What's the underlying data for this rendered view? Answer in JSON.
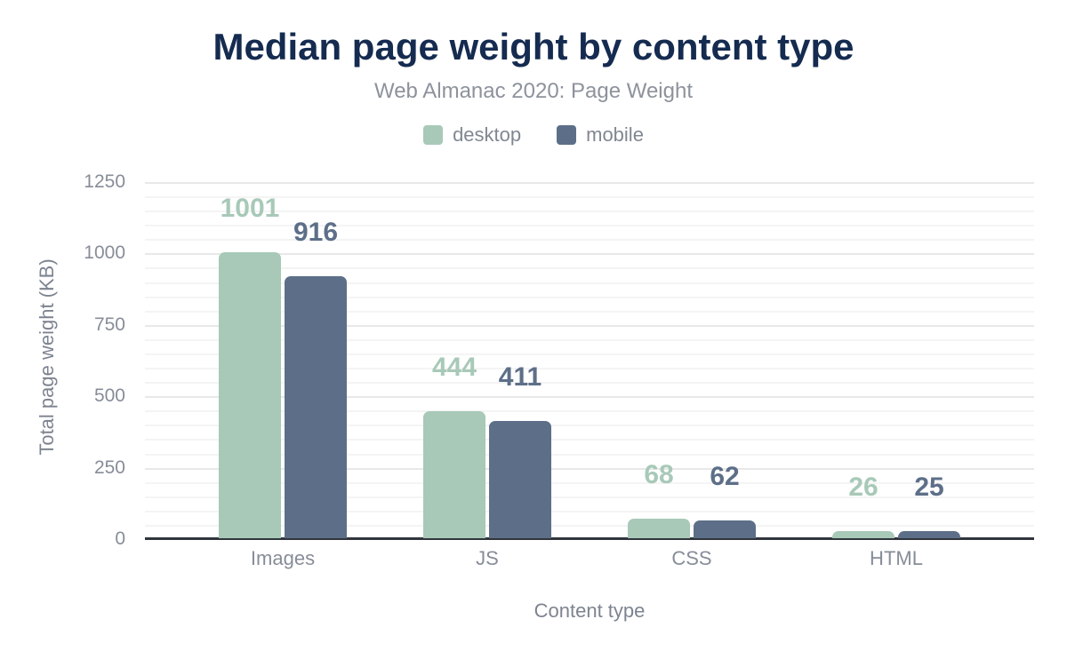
{
  "chart_data": {
    "type": "bar",
    "title": "Median page weight by content type",
    "subtitle": "Web Almanac 2020: Page Weight",
    "categories": [
      "Images",
      "JS",
      "CSS",
      "HTML"
    ],
    "series": [
      {
        "name": "desktop",
        "color": "#a8c9b8",
        "values": [
          1001,
          444,
          68,
          26
        ]
      },
      {
        "name": "mobile",
        "color": "#5d6f88",
        "values": [
          916,
          411,
          62,
          25
        ]
      }
    ],
    "xlabel": "Content type",
    "ylabel": "Total page weight (KB)",
    "ylim": [
      0,
      1250
    ],
    "yticks": [
      0,
      250,
      500,
      750,
      1000,
      1250
    ],
    "minor_grid_step": 50,
    "grid": true,
    "legend_position": "top",
    "data_labels": true
  },
  "colors": {
    "title": "#152b50",
    "subtitle": "#8d929c",
    "axis_labels": "#7d8490",
    "tick_labels": "#878d98",
    "legend_text": "#818792",
    "grid_major": "#e8e8e8",
    "grid_minor": "#f4f4f4",
    "axis_line": "#31353c",
    "background": "#ffffff"
  }
}
